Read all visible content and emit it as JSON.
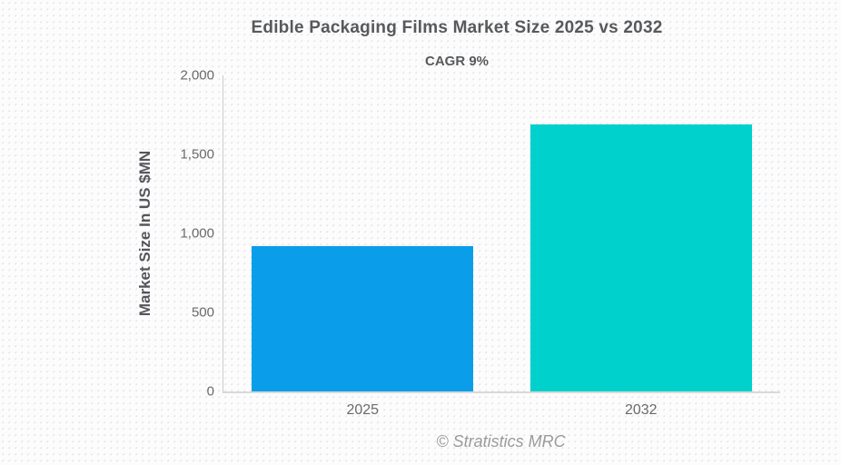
{
  "chart_data": {
    "type": "bar",
    "title": "Edible Packaging Films Market Size 2025 vs 2032",
    "subtitle": "CAGR 9%",
    "ylabel": "Market Size In US $MN",
    "xlabel": "",
    "categories": [
      "2025",
      "2032"
    ],
    "values": [
      920,
      1690
    ],
    "bar_colors": [
      "#0A9EEA",
      "#00D1CC"
    ],
    "ylim": [
      0,
      2000
    ],
    "yticks": [
      {
        "value": 0,
        "label": "0"
      },
      {
        "value": 500,
        "label": "500"
      },
      {
        "value": 1000,
        "label": "1,000"
      },
      {
        "value": 1500,
        "label": "1,500"
      },
      {
        "value": 2000,
        "label": "2,000"
      }
    ],
    "grid": false,
    "legend": "none"
  },
  "footer": {
    "credit": "© Stratistics MRC"
  },
  "colors": {
    "axis_line": "#cccccc",
    "baseline": "#d9d9d9",
    "title_text": "#58595b",
    "tick_text": "#6a6a6a",
    "footer_text": "#9b9b9b",
    "background": "#fcfcfd"
  },
  "layout": {
    "bar_slot_percent": 50,
    "bar_width_percent": 79.5
  }
}
